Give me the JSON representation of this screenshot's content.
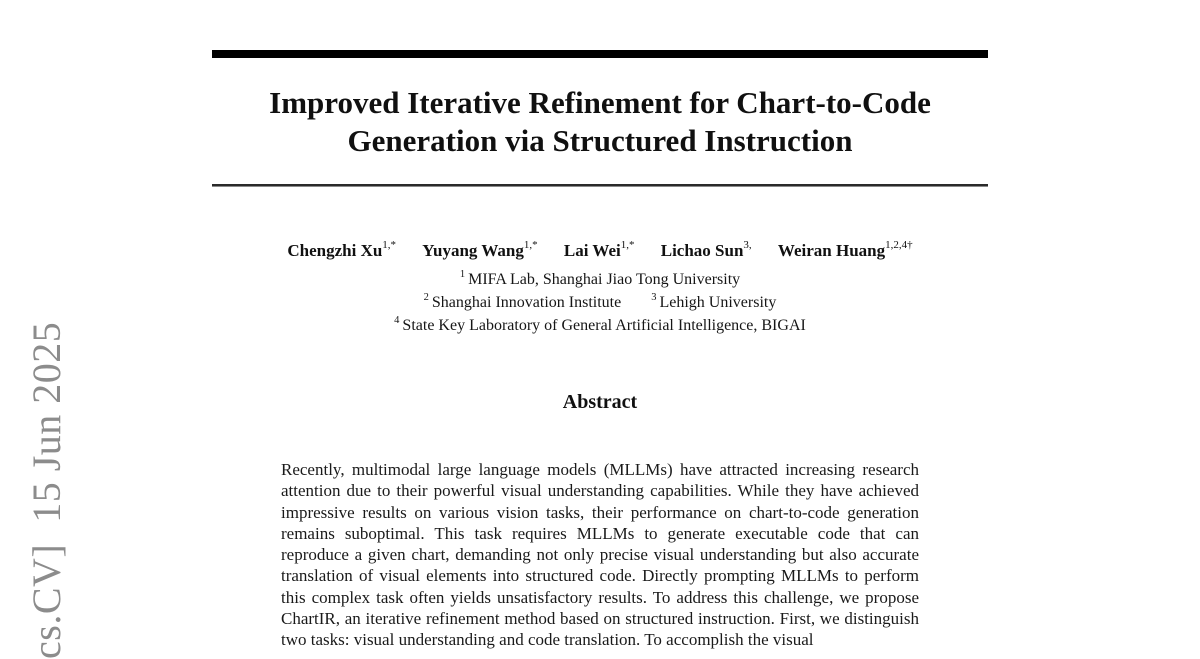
{
  "watermark": {
    "text": "cs.CV]  15 Jun 2025",
    "color": "#8c8c8c"
  },
  "title": {
    "line1": "Improved Iterative Refinement for Chart-to-Code",
    "line2": "Generation via Structured Instruction"
  },
  "authors": [
    {
      "name": "Chengzhi Xu",
      "sup": "1,*"
    },
    {
      "name": "Yuyang Wang",
      "sup": "1,*"
    },
    {
      "name": "Lai Wei",
      "sup": "1,*"
    },
    {
      "name": "Lichao Sun",
      "sup": "3,"
    },
    {
      "name": "Weiran Huang",
      "sup": "1,2,4†"
    }
  ],
  "affiliations": [
    {
      "sup": "1",
      "text": "MIFA Lab, Shanghai Jiao Tong University"
    },
    {
      "sup": "2",
      "text": "Shanghai Innovation Institute"
    },
    {
      "sup": "3",
      "text": "Lehigh University"
    },
    {
      "sup": "4",
      "text": "State Key Laboratory of General Artificial Intelligence, BIGAI"
    }
  ],
  "abstract": {
    "heading": "Abstract",
    "text": "Recently, multimodal large language models (MLLMs) have attracted increasing research attention due to their powerful visual understanding capabilities. While they have achieved impressive results on various vision tasks, their performance on chart-to-code generation remains suboptimal. This task requires MLLMs to generate executable code that can reproduce a given chart, demanding not only precise visual understanding but also accurate translation of visual elements into structured code. Directly prompting MLLMs to perform this complex task often yields unsatisfactory results. To address this challenge, we propose ChartIR, an iterative refinement method based on structured instruction. First, we distinguish two tasks: visual understanding and code translation. To accomplish the visual"
  },
  "colors": {
    "rule": "#000000",
    "text": "#161616",
    "watermark_gray": "#8c8c8c",
    "background": "#ffffff"
  }
}
